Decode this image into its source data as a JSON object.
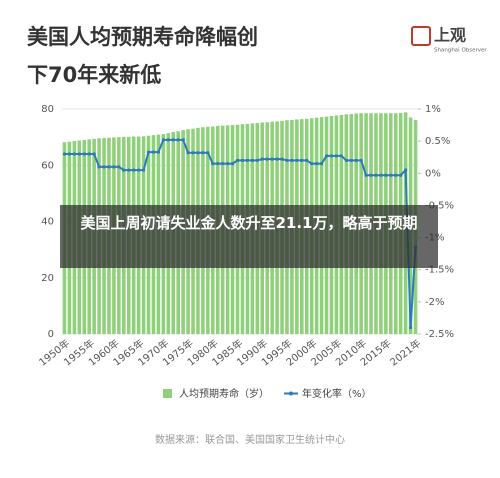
{
  "chart_data": {
    "type": "bar_line",
    "title": "美国人均预期寿命降幅创下70年来新低",
    "categories": [
      "1950年",
      null,
      null,
      null,
      null,
      "1955年",
      null,
      null,
      null,
      null,
      "1960年",
      null,
      null,
      null,
      null,
      "1965年",
      null,
      null,
      null,
      null,
      "1970年",
      null,
      null,
      null,
      null,
      "1975年",
      null,
      null,
      null,
      null,
      "1980年",
      null,
      null,
      null,
      null,
      "1985年",
      null,
      null,
      null,
      null,
      "1990年",
      null,
      null,
      null,
      null,
      "1995年",
      null,
      null,
      null,
      null,
      "2000年",
      null,
      null,
      null,
      null,
      "2005年",
      null,
      null,
      null,
      null,
      "2010年",
      null,
      null,
      null,
      null,
      "2015年",
      null,
      null,
      null,
      null,
      null,
      "2021年"
    ],
    "series": [
      {
        "name": "人均预期寿命（岁）",
        "color": "#8fd17b",
        "type": "bar",
        "values": [
          68.2,
          68.4,
          68.6,
          68.8,
          69.0,
          69.2,
          69.4,
          69.6,
          69.7,
          69.8,
          69.9,
          70.0,
          70.1,
          70.1,
          70.2,
          70.2,
          70.3,
          70.5,
          70.7,
          70.9,
          71.1,
          71.4,
          71.8,
          72.1,
          72.5,
          72.8,
          73.0,
          73.3,
          73.5,
          73.7,
          73.8,
          74.0,
          74.1,
          74.2,
          74.3,
          74.4,
          74.6,
          74.7,
          74.9,
          75.0,
          75.2,
          75.3,
          75.5,
          75.6,
          75.8,
          76.0,
          76.1,
          76.3,
          76.4,
          76.5,
          76.7,
          76.9,
          77.1,
          77.3,
          77.5,
          77.7,
          77.9,
          78.1,
          78.2,
          78.4,
          78.5,
          78.5,
          78.5,
          78.5,
          78.5,
          78.5,
          78.5,
          78.5,
          78.6,
          78.8,
          77.0,
          76.1
        ]
      },
      {
        "name": "年变化率（%）",
        "color": "#2b7bb9",
        "type": "line",
        "axis": "y2",
        "values": [
          0.3,
          0.3,
          0.3,
          0.3,
          0.3,
          0.3,
          0.3,
          0.1,
          0.1,
          0.1,
          0.1,
          0.1,
          0.05,
          0.05,
          0.05,
          0.05,
          0.05,
          0.33,
          0.33,
          0.33,
          0.52,
          0.52,
          0.52,
          0.52,
          0.52,
          0.32,
          0.32,
          0.32,
          0.32,
          0.32,
          0.15,
          0.15,
          0.15,
          0.15,
          0.15,
          0.2,
          0.2,
          0.2,
          0.2,
          0.2,
          0.22,
          0.22,
          0.22,
          0.22,
          0.22,
          0.2,
          0.2,
          0.2,
          0.2,
          0.2,
          0.15,
          0.15,
          0.15,
          0.27,
          0.27,
          0.27,
          0.27,
          0.2,
          0.2,
          0.2,
          0.2,
          -0.03,
          -0.03,
          -0.03,
          -0.03,
          -0.03,
          -0.03,
          -0.03,
          -0.03,
          0.05,
          -2.4,
          -1.15
        ]
      }
    ],
    "ylim": [
      0,
      80
    ],
    "yticks": [
      0,
      20,
      40,
      60,
      80
    ],
    "y2lim": [
      -2.5,
      1
    ],
    "y2ticks": [
      {
        "value": 1,
        "label": "1%"
      },
      {
        "value": 0.5,
        "label": "0.5%"
      },
      {
        "value": 0,
        "label": "0%"
      },
      {
        "value": -0.5,
        "label": "-0.5%"
      },
      {
        "value": -1,
        "label": "-1%"
      },
      {
        "value": -1.5,
        "label": "-1.5%"
      },
      {
        "value": -2,
        "label": "-2%"
      },
      {
        "value": -2.5,
        "label": "-2.5%"
      }
    ],
    "grid": true,
    "source": "数据来源：联合国、美国国家卫生统计中心"
  },
  "logo": {
    "name": "上观",
    "tagline": "Shanghai Observer"
  },
  "overlay_caption": "美国上周初请失业金人数升至21.1万，略高于预期"
}
